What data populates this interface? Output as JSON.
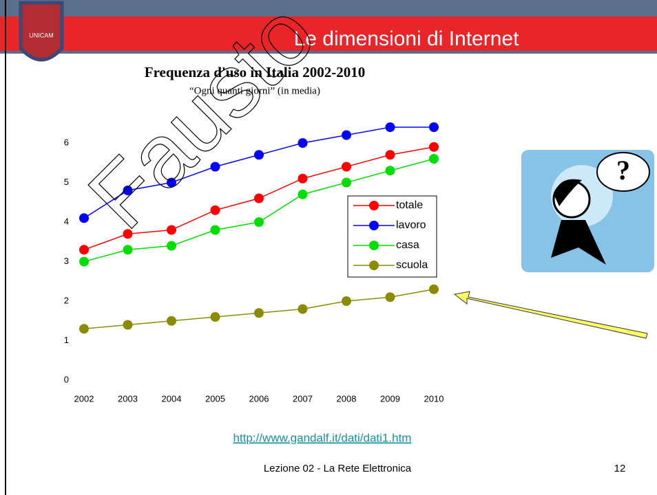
{
  "slide": {
    "title": "Le dimensioni di Internet",
    "logo_text": "UNICAM",
    "watermark": "Fausto",
    "link": "http://www.gandalf.it/dati/dati1.htm",
    "footer": "Lezione 02 - La Rete Elettronica",
    "page_number": "12"
  },
  "chart_data": {
    "type": "line",
    "title": "Frequenza d'uso in Italia 2002-2010",
    "subtitle": "“Ogni quanti giorni” (in media)",
    "x": [
      2002,
      2003,
      2004,
      2005,
      2006,
      2007,
      2008,
      2009,
      2010
    ],
    "xlim": [
      2002,
      2010
    ],
    "xticks": [
      2002,
      2003,
      2004,
      2005,
      2006,
      2007,
      2008,
      2009,
      2010
    ],
    "ylim": [
      0,
      6.6
    ],
    "yticks": [
      0,
      1,
      2,
      3,
      4,
      5,
      6
    ],
    "grid": false,
    "legend": "right",
    "series": [
      {
        "name": "totale",
        "color": "#ff0000",
        "values": [
          3.3,
          3.7,
          3.8,
          4.3,
          4.6,
          5.1,
          5.4,
          5.7,
          5.9
        ]
      },
      {
        "name": "lavoro",
        "color": "#0000ff",
        "values": [
          4.1,
          4.8,
          5.0,
          5.4,
          5.7,
          6.0,
          6.2,
          6.4,
          6.4
        ]
      },
      {
        "name": "casa",
        "color": "#00dd00",
        "values": [
          3.0,
          3.3,
          3.4,
          3.8,
          4.0,
          4.7,
          5.0,
          5.3,
          5.6
        ]
      },
      {
        "name": "scuola",
        "color": "#8b8b00",
        "values": [
          1.3,
          1.4,
          1.5,
          1.6,
          1.7,
          1.8,
          2.0,
          2.1,
          2.3
        ]
      }
    ]
  }
}
